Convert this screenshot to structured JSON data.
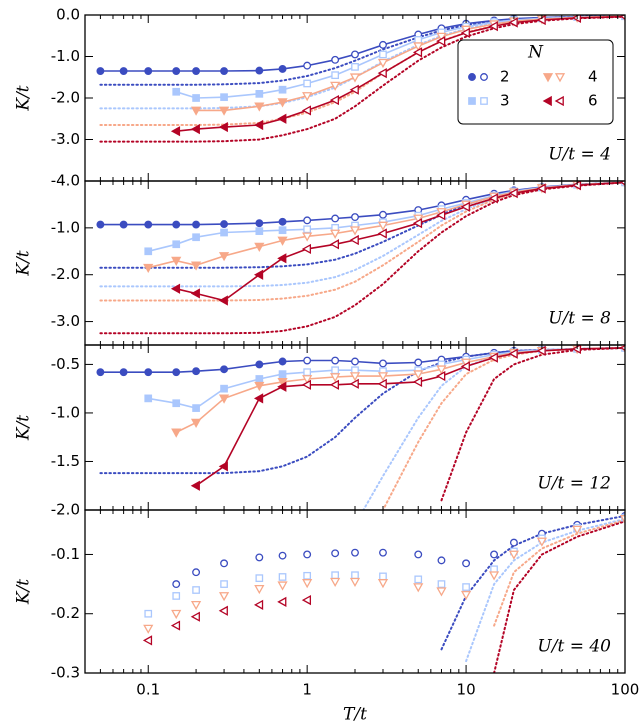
{
  "chart_data": [
    {
      "type": "line",
      "xscale": "log",
      "xlim": [
        0.04,
        100
      ],
      "xticks": [
        0.1,
        1,
        10,
        100
      ],
      "x": [
        0.05,
        0.07,
        0.1,
        0.15,
        0.2,
        0.3,
        0.5,
        0.7,
        1,
        1.5,
        2,
        3,
        5,
        7,
        10,
        15,
        20,
        30,
        50,
        100
      ],
      "ylabel": "K/t",
      "ylim": [
        -4,
        0
      ],
      "yticks": [
        {
          "value": 0,
          "label": "0.0"
        },
        {
          "value": -1,
          "label": "-1.0"
        },
        {
          "value": -2,
          "label": "-2.0"
        },
        {
          "value": -3,
          "label": "-3.0"
        },
        {
          "value": -4,
          "label": "-4.0"
        }
      ],
      "annotation": "U/t = 4",
      "legend": "upper right",
      "legend_title": "N",
      "series": [
        {
          "name": "2",
          "color": "#3b4cc0",
          "marker": "circle",
          "values": [
            -1.35,
            -1.35,
            -1.35,
            -1.35,
            -1.35,
            -1.35,
            -1.34,
            -1.3,
            -1.22,
            -1.08,
            -0.95,
            -0.72,
            -0.47,
            -0.32,
            -0.21,
            -0.13,
            -0.09,
            -0.06,
            -0.04,
            -0.02
          ],
          "dotted_values": [
            -1.68,
            -1.68,
            -1.68,
            -1.68,
            -1.68,
            -1.67,
            -1.64,
            -1.58,
            -1.47,
            -1.28,
            -1.1,
            -0.83,
            -0.54,
            -0.37,
            -0.24,
            -0.15,
            -0.1,
            -0.07,
            -0.04,
            -0.02
          ]
        },
        {
          "name": "3",
          "color": "#aac7fd",
          "marker": "square",
          "values": [
            null,
            null,
            null,
            -1.85,
            -2.0,
            -1.98,
            -1.9,
            -1.8,
            -1.65,
            -1.45,
            -1.25,
            -0.95,
            -0.6,
            -0.42,
            -0.28,
            -0.17,
            -0.12,
            -0.08,
            -0.05,
            -0.03
          ],
          "dotted_values": [
            -2.25,
            -2.25,
            -2.25,
            -2.25,
            -2.25,
            -2.24,
            -2.2,
            -2.12,
            -1.98,
            -1.75,
            -1.5,
            -1.12,
            -0.72,
            -0.5,
            -0.33,
            -0.2,
            -0.14,
            -0.09,
            -0.05,
            -0.03
          ]
        },
        {
          "name": "4",
          "color": "#f7a889",
          "marker": "tri-down",
          "values": [
            null,
            null,
            null,
            null,
            -2.3,
            -2.3,
            -2.2,
            -2.1,
            -1.95,
            -1.7,
            -1.5,
            -1.15,
            -0.75,
            -0.52,
            -0.35,
            -0.22,
            -0.15,
            -0.1,
            -0.06,
            -0.03
          ],
          "dotted_values": [
            -2.65,
            -2.65,
            -2.65,
            -2.65,
            -2.65,
            -2.64,
            -2.6,
            -2.5,
            -2.35,
            -2.1,
            -1.85,
            -1.4,
            -0.9,
            -0.63,
            -0.42,
            -0.26,
            -0.18,
            -0.11,
            -0.06,
            -0.03
          ]
        },
        {
          "name": "6",
          "color": "#b40426",
          "marker": "tri-left",
          "values": [
            null,
            null,
            null,
            -2.8,
            -2.75,
            -2.7,
            -2.65,
            -2.5,
            -2.3,
            -2.05,
            -1.8,
            -1.4,
            -0.9,
            -0.63,
            -0.43,
            -0.27,
            -0.18,
            -0.12,
            -0.07,
            -0.04
          ],
          "dotted_values": [
            -3.05,
            -3.05,
            -3.05,
            -3.05,
            -3.05,
            -3.04,
            -3.0,
            -2.9,
            -2.75,
            -2.5,
            -2.2,
            -1.7,
            -1.1,
            -0.78,
            -0.52,
            -0.32,
            -0.22,
            -0.14,
            -0.08,
            -0.04
          ]
        }
      ]
    },
    {
      "type": "line",
      "xscale": "log",
      "xlim": [
        0.04,
        100
      ],
      "xticks": [
        0.1,
        1,
        10,
        100
      ],
      "x": [
        0.05,
        0.07,
        0.1,
        0.15,
        0.2,
        0.3,
        0.5,
        0.7,
        1,
        1.5,
        2,
        3,
        5,
        7,
        10,
        15,
        20,
        30,
        50,
        100
      ],
      "ylabel": "K/t",
      "ylim": [
        -3.5,
        0
      ],
      "yticks": [
        {
          "value": -1,
          "label": "-1.0"
        },
        {
          "value": -2,
          "label": "-2.0"
        },
        {
          "value": -3,
          "label": "-3.0"
        }
      ],
      "annotation": "U/t = 8",
      "series": [
        {
          "name": "2",
          "color": "#3b4cc0",
          "marker": "circle",
          "values": [
            -0.93,
            -0.93,
            -0.93,
            -0.93,
            -0.93,
            -0.92,
            -0.9,
            -0.87,
            -0.84,
            -0.8,
            -0.77,
            -0.72,
            -0.62,
            -0.52,
            -0.4,
            -0.27,
            -0.2,
            -0.13,
            -0.07,
            -0.03
          ],
          "dotted_values": [
            -1.85,
            -1.85,
            -1.85,
            -1.85,
            -1.85,
            -1.85,
            -1.84,
            -1.82,
            -1.78,
            -1.68,
            -1.55,
            -1.3,
            -0.95,
            -0.72,
            -0.5,
            -0.32,
            -0.22,
            -0.14,
            -0.08,
            -0.03
          ]
        },
        {
          "name": "3",
          "color": "#aac7fd",
          "marker": "square",
          "values": [
            null,
            null,
            -1.5,
            -1.35,
            -1.2,
            -1.1,
            -1.07,
            -1.05,
            -1.03,
            -1.0,
            -0.95,
            -0.88,
            -0.74,
            -0.6,
            -0.47,
            -0.31,
            -0.22,
            -0.14,
            -0.08,
            -0.03
          ],
          "dotted_values": [
            -2.25,
            -2.25,
            -2.25,
            -2.25,
            -2.25,
            -2.25,
            -2.24,
            -2.22,
            -2.17,
            -2.05,
            -1.9,
            -1.6,
            -1.15,
            -0.85,
            -0.6,
            -0.37,
            -0.25,
            -0.16,
            -0.08,
            -0.03
          ]
        },
        {
          "name": "4",
          "color": "#f7a889",
          "marker": "tri-down",
          "values": [
            null,
            null,
            -1.85,
            -1.7,
            -1.8,
            -1.6,
            -1.4,
            -1.27,
            -1.18,
            -1.12,
            -1.05,
            -0.95,
            -0.8,
            -0.66,
            -0.5,
            -0.33,
            -0.24,
            -0.15,
            -0.08,
            -0.03
          ],
          "dotted_values": [
            -2.55,
            -2.55,
            -2.55,
            -2.55,
            -2.55,
            -2.55,
            -2.54,
            -2.51,
            -2.45,
            -2.32,
            -2.15,
            -1.8,
            -1.3,
            -0.95,
            -0.65,
            -0.4,
            -0.27,
            -0.17,
            -0.09,
            -0.03
          ]
        },
        {
          "name": "6",
          "color": "#b40426",
          "marker": "tri-left",
          "values": [
            null,
            null,
            null,
            -2.3,
            -2.4,
            -2.55,
            -2.0,
            -1.65,
            -1.45,
            -1.35,
            -1.26,
            -1.12,
            -0.9,
            -0.73,
            -0.55,
            -0.37,
            -0.26,
            -0.16,
            -0.09,
            -0.03
          ],
          "dotted_values": [
            -3.25,
            -3.25,
            -3.25,
            -3.25,
            -3.25,
            -3.25,
            -3.24,
            -3.2,
            -3.1,
            -2.9,
            -2.65,
            -2.2,
            -1.5,
            -1.1,
            -0.75,
            -0.45,
            -0.3,
            -0.18,
            -0.1,
            -0.03
          ]
        }
      ]
    },
    {
      "type": "line",
      "xscale": "log",
      "xlim": [
        0.04,
        100
      ],
      "xticks": [
        0.1,
        1,
        10,
        100
      ],
      "x": [
        0.05,
        0.07,
        0.1,
        0.15,
        0.2,
        0.3,
        0.5,
        0.7,
        1,
        1.5,
        2,
        3,
        5,
        7,
        10,
        15,
        20,
        30,
        50,
        100
      ],
      "ylabel": "K/t",
      "ylim": [
        -2,
        -0.3
      ],
      "yticks": [
        -0.5,
        {
          "value": -1,
          "label": "-1.0"
        },
        -1.5,
        {
          "value": -2,
          "label": "-2.0"
        }
      ],
      "annotation": "U/t = 12",
      "series": [
        {
          "name": "2",
          "color": "#3b4cc0",
          "marker": "circle",
          "values": [
            -0.58,
            -0.58,
            -0.58,
            -0.58,
            -0.57,
            -0.55,
            -0.5,
            -0.47,
            -0.46,
            -0.46,
            -0.47,
            -0.49,
            -0.48,
            -0.45,
            -0.42,
            -0.38,
            -0.36,
            -0.35,
            -0.34,
            -0.33
          ],
          "dotted_values": [
            -1.62,
            -1.62,
            -1.62,
            -1.62,
            -1.62,
            -1.62,
            -1.6,
            -1.55,
            -1.45,
            -1.25,
            -1.05,
            -0.8,
            -0.57,
            -0.48,
            -0.42,
            -0.38,
            -0.36,
            -0.35,
            -0.34,
            -0.33
          ]
        },
        {
          "name": "3",
          "color": "#aac7fd",
          "marker": "square",
          "values": [
            null,
            null,
            -0.85,
            -0.9,
            -0.95,
            -0.75,
            -0.65,
            -0.6,
            -0.58,
            -0.56,
            -0.56,
            -0.57,
            -0.56,
            -0.5,
            -0.45,
            -0.4,
            -0.37,
            -0.35,
            -0.34,
            -0.33
          ],
          "dotted_values": [
            null,
            null,
            null,
            null,
            null,
            null,
            null,
            null,
            -2.9,
            -2.5,
            -2.15,
            -1.65,
            -1.05,
            -0.72,
            -0.52,
            -0.42,
            -0.38,
            -0.35,
            -0.34,
            -0.33
          ]
        },
        {
          "name": "4",
          "color": "#f7a889",
          "marker": "tri-down",
          "values": [
            null,
            null,
            null,
            -1.2,
            -1.1,
            -0.85,
            -0.72,
            -0.68,
            -0.65,
            -0.63,
            -0.62,
            -0.62,
            -0.6,
            -0.55,
            -0.48,
            -0.42,
            -0.38,
            -0.36,
            -0.34,
            -0.33
          ],
          "dotted_values": [
            null,
            null,
            null,
            null,
            null,
            null,
            null,
            null,
            null,
            -2.9,
            -2.5,
            -2.0,
            -1.3,
            -0.9,
            -0.6,
            -0.45,
            -0.4,
            -0.36,
            -0.34,
            -0.33
          ]
        },
        {
          "name": "6",
          "color": "#b40426",
          "marker": "tri-left",
          "values": [
            null,
            null,
            null,
            null,
            -1.75,
            -1.55,
            -0.85,
            -0.73,
            -0.71,
            -0.71,
            -0.7,
            -0.7,
            -0.68,
            -0.62,
            -0.52,
            -0.43,
            -0.39,
            -0.36,
            -0.34,
            -0.33
          ],
          "dotted_values": [
            null,
            null,
            null,
            null,
            null,
            null,
            null,
            null,
            null,
            null,
            null,
            null,
            null,
            -1.9,
            -1.2,
            -0.65,
            -0.5,
            -0.4,
            -0.35,
            -0.33
          ]
        }
      ]
    },
    {
      "type": "line",
      "xscale": "log",
      "xlim": [
        0.04,
        100
      ],
      "xticks": [
        0.1,
        1,
        10,
        100
      ],
      "x": [
        0.05,
        0.07,
        0.1,
        0.15,
        0.2,
        0.3,
        0.5,
        0.7,
        1,
        1.5,
        2,
        3,
        5,
        7,
        10,
        15,
        20,
        30,
        50,
        100
      ],
      "xlabel": "T/t",
      "ylabel": "K/t",
      "ylim": [
        -0.3,
        -0.025
      ],
      "yticks": [
        -0.1,
        -0.2,
        -0.3
      ],
      "annotation": "U/t = 40",
      "series": [
        {
          "name": "2",
          "color": "#3b4cc0",
          "marker": "circle",
          "values": [
            null,
            null,
            null,
            -0.15,
            -0.13,
            -0.115,
            -0.105,
            -0.102,
            -0.1,
            -0.098,
            -0.097,
            -0.097,
            -0.1,
            -0.11,
            -0.115,
            -0.1,
            -0.08,
            -0.065,
            -0.05,
            -0.035
          ],
          "dotted_values": [
            null,
            null,
            null,
            null,
            null,
            null,
            null,
            null,
            null,
            null,
            null,
            null,
            null,
            -0.26,
            -0.17,
            -0.11,
            -0.085,
            -0.065,
            -0.05,
            -0.035
          ]
        },
        {
          "name": "3",
          "color": "#aac7fd",
          "marker": "square",
          "values": [
            null,
            null,
            -0.2,
            -0.17,
            -0.16,
            -0.15,
            -0.14,
            -0.138,
            -0.136,
            -0.135,
            -0.135,
            -0.137,
            -0.142,
            -0.15,
            -0.155,
            -0.125,
            -0.095,
            -0.073,
            -0.055,
            -0.038
          ],
          "dotted_values": [
            null,
            null,
            null,
            null,
            null,
            null,
            null,
            null,
            null,
            null,
            null,
            null,
            null,
            null,
            -0.28,
            -0.15,
            -0.11,
            -0.08,
            -0.06,
            -0.04
          ]
        },
        {
          "name": "4",
          "color": "#f7a889",
          "marker": "tri-down",
          "values": [
            null,
            null,
            -0.225,
            -0.2,
            -0.185,
            -0.17,
            -0.158,
            -0.152,
            -0.148,
            -0.146,
            -0.146,
            -0.148,
            -0.155,
            -0.162,
            -0.168,
            -0.135,
            -0.1,
            -0.078,
            -0.058,
            -0.04
          ],
          "dotted_values": [
            null,
            null,
            null,
            null,
            null,
            null,
            null,
            null,
            null,
            null,
            null,
            null,
            null,
            null,
            null,
            -0.22,
            -0.13,
            -0.09,
            -0.065,
            -0.042
          ]
        },
        {
          "name": "6",
          "color": "#b40426",
          "marker": "tri-left",
          "values": [
            null,
            null,
            -0.245,
            -0.22,
            -0.205,
            -0.195,
            -0.185,
            -0.18,
            -0.177,
            null,
            null,
            null,
            null,
            null,
            null,
            null,
            null,
            null,
            null,
            null
          ],
          "dotted_values": [
            null,
            null,
            null,
            null,
            null,
            null,
            null,
            null,
            null,
            null,
            null,
            null,
            null,
            null,
            null,
            -0.3,
            -0.16,
            -0.1,
            -0.07,
            -0.044
          ]
        }
      ]
    }
  ]
}
